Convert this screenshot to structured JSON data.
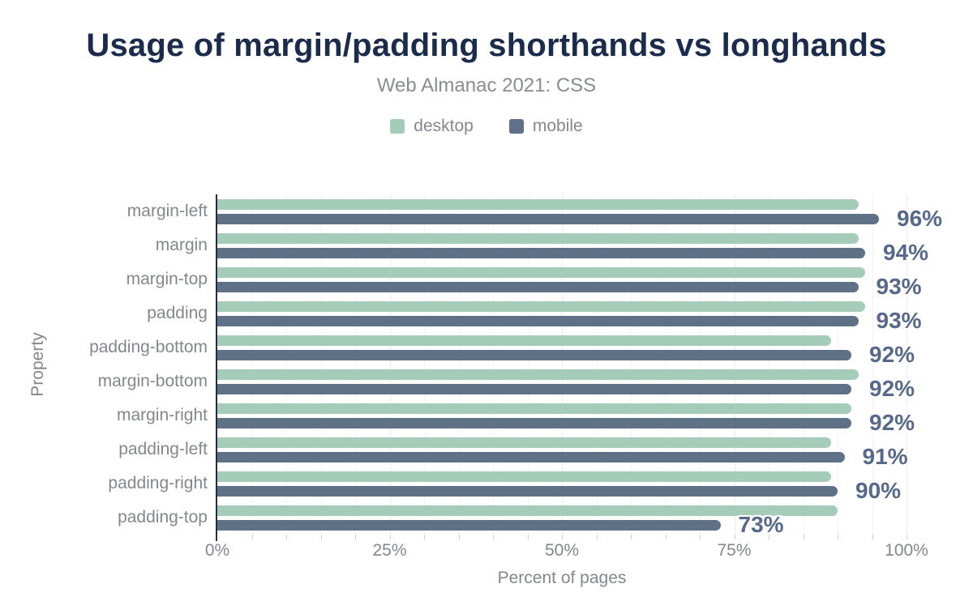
{
  "chart_data": {
    "type": "bar",
    "orientation": "horizontal",
    "title": "Usage of margin/padding shorthands vs longhands",
    "subtitle": "Web Almanac 2021: CSS",
    "xlabel": "Percent of pages",
    "ylabel": "Property",
    "categories": [
      "margin-left",
      "margin",
      "margin-top",
      "padding",
      "padding-bottom",
      "margin-bottom",
      "margin-right",
      "padding-left",
      "padding-right",
      "padding-top"
    ],
    "series": [
      {
        "name": "desktop",
        "values": [
          93,
          93,
          94,
          94,
          89,
          93,
          92,
          89,
          89,
          90
        ]
      },
      {
        "name": "mobile",
        "values": [
          96,
          94,
          93,
          93,
          92,
          92,
          92,
          91,
          90,
          73
        ]
      }
    ],
    "bar_labels": [
      "96%",
      "94%",
      "93%",
      "93%",
      "92%",
      "92%",
      "92%",
      "91%",
      "90%",
      "73%"
    ],
    "bar_labels_follow_series": "mobile",
    "x_ticks": [
      "0%",
      "25%",
      "50%",
      "75%",
      "100%"
    ],
    "xlim": [
      0,
      100
    ],
    "grid": {
      "minor_step_percent": 5,
      "major_step_percent": 25,
      "legend_position": "top-center"
    }
  },
  "colors": {
    "desktop_bar": "#a4ccb8",
    "mobile_bar": "#5e7187",
    "title_text": "#1a2b4c",
    "muted_text": "#84878e",
    "subtitle_text": "#898c92",
    "value_label_text": "#57698b",
    "axis_line": "#252e41",
    "gridline_minor": "#f4f4f7",
    "gridline_major": "#eaeaef",
    "background": "#ffffff"
  }
}
